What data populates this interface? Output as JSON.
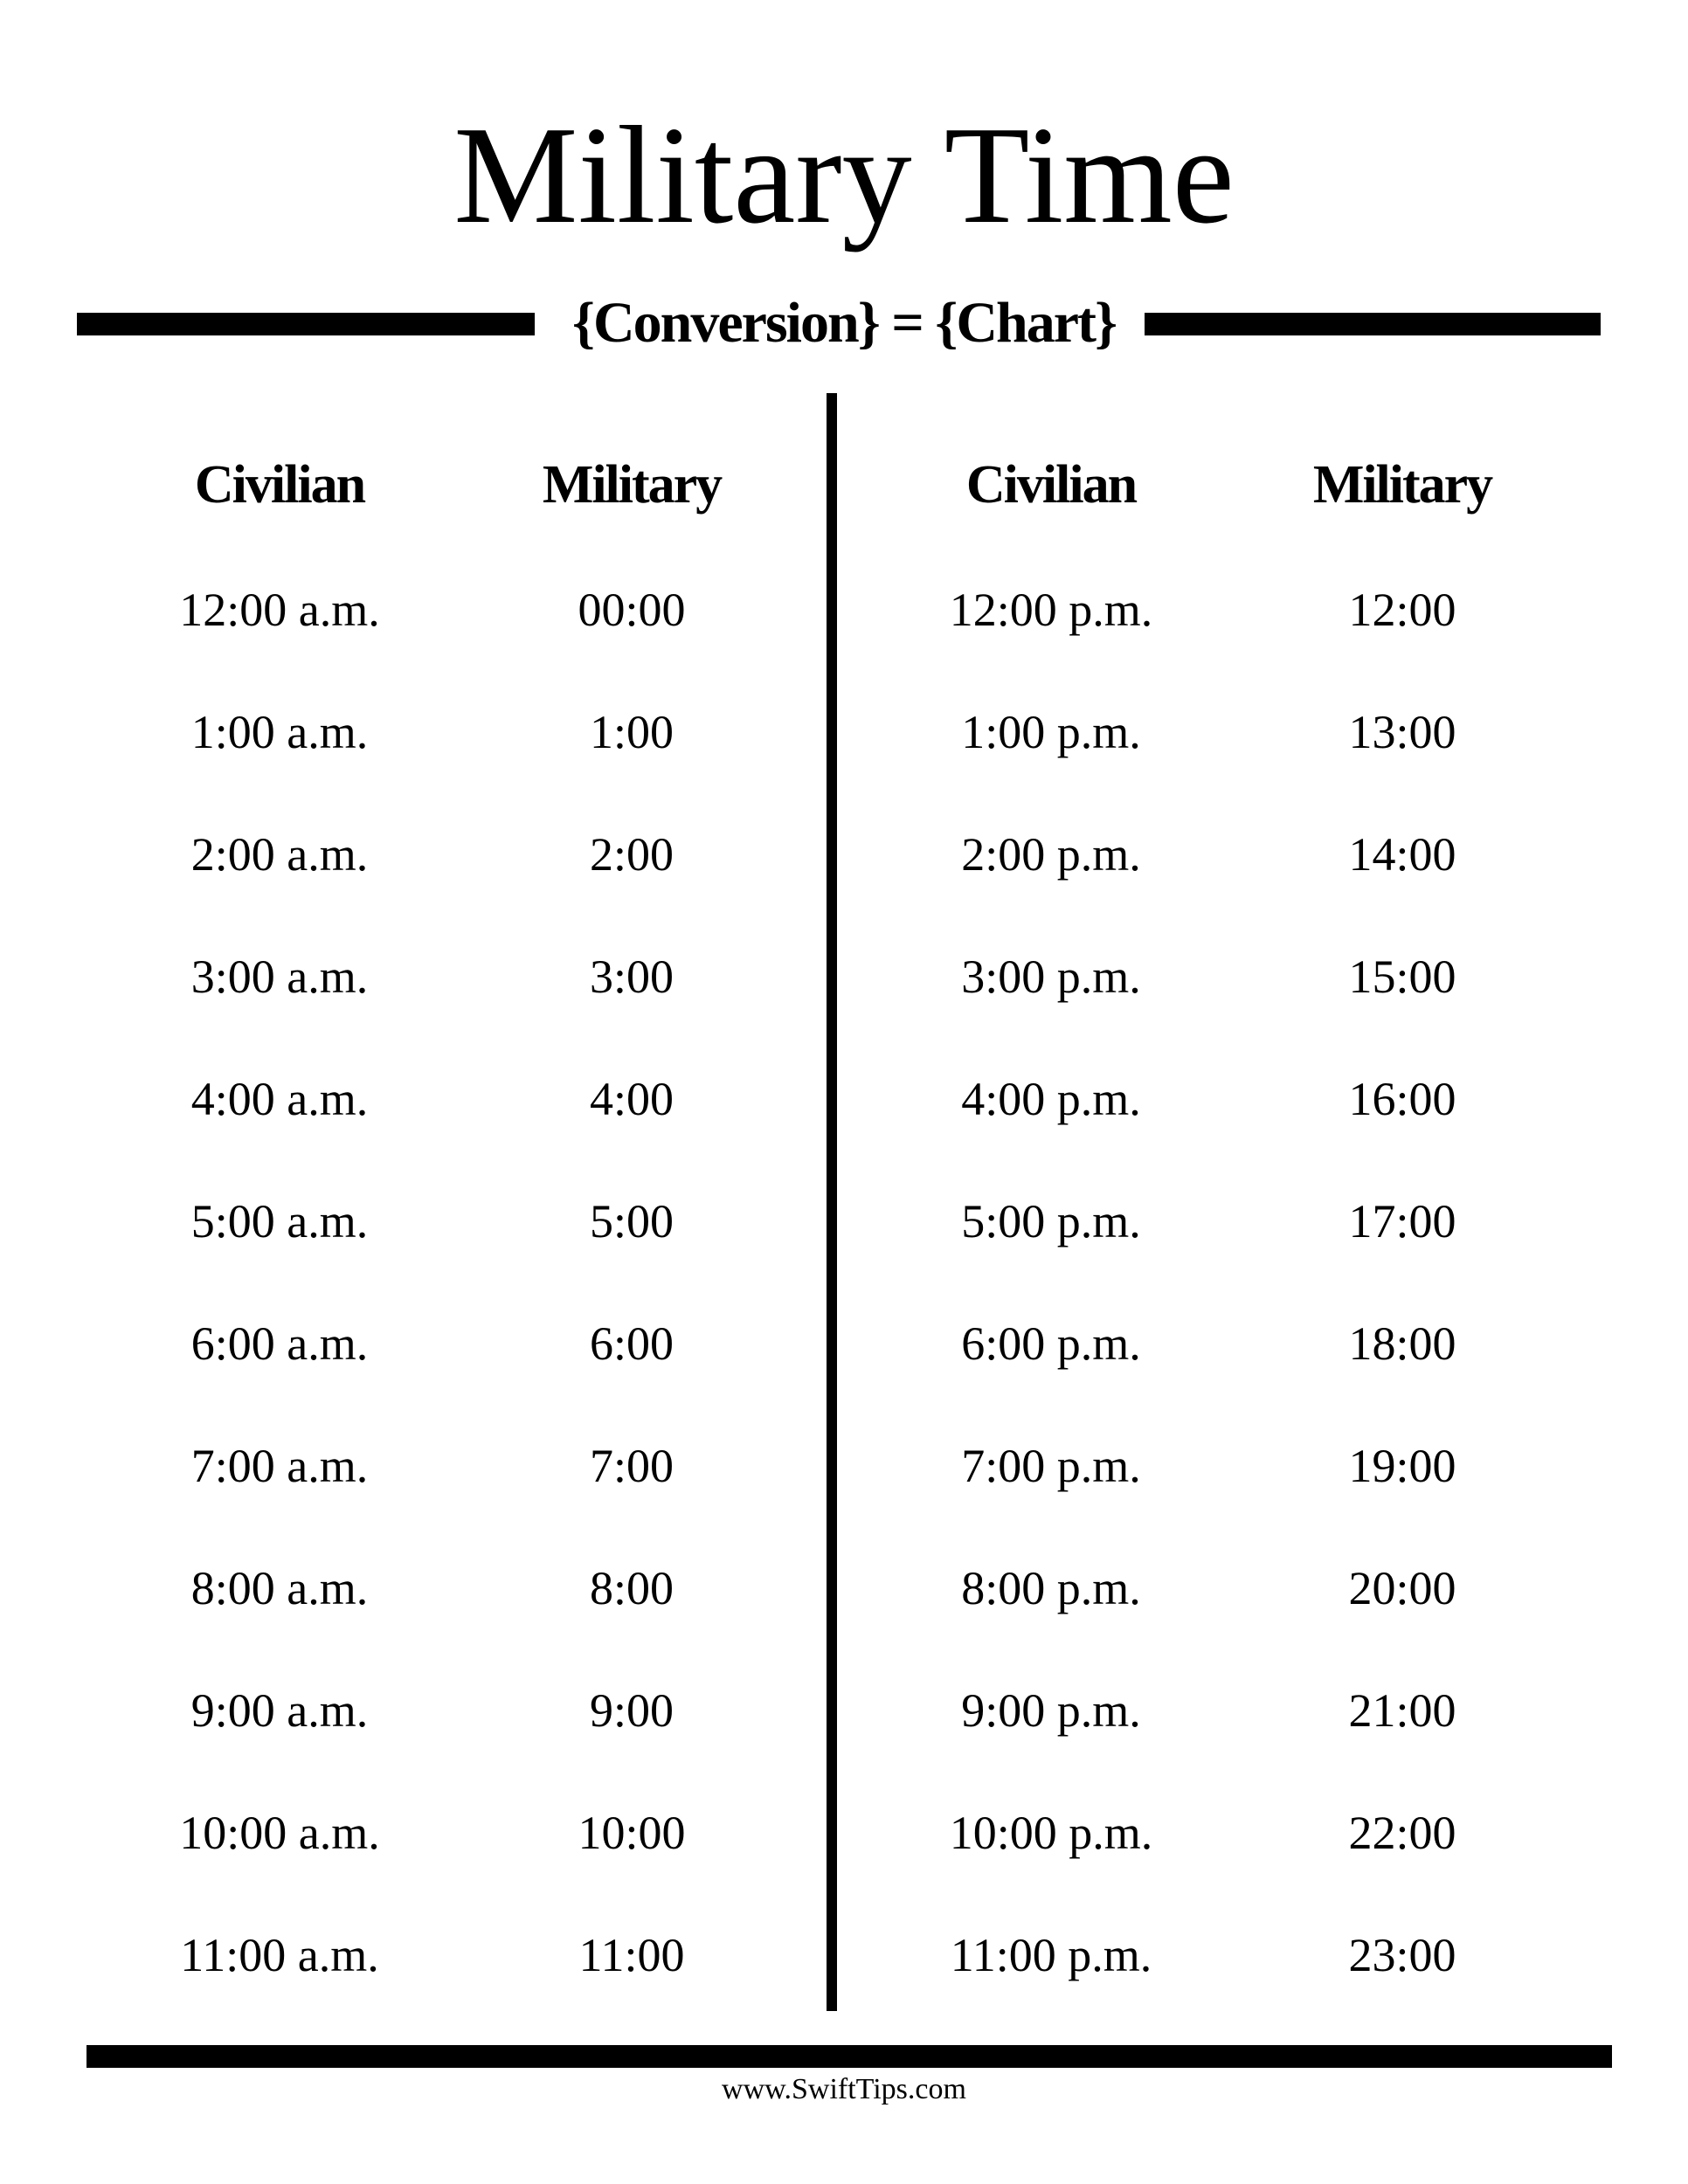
{
  "title": "Military Time",
  "subtitle": "{Conversion} = {Chart}",
  "headers": [
    "Civilian",
    "Military",
    "Civilian",
    "Military"
  ],
  "am_rows": [
    {
      "civilian": "12:00 a.m.",
      "military": "00:00"
    },
    {
      "civilian": "1:00 a.m.",
      "military": "1:00"
    },
    {
      "civilian": "2:00 a.m.",
      "military": "2:00"
    },
    {
      "civilian": "3:00 a.m.",
      "military": "3:00"
    },
    {
      "civilian": "4:00 a.m.",
      "military": "4:00"
    },
    {
      "civilian": "5:00 a.m.",
      "military": "5:00"
    },
    {
      "civilian": "6:00 a.m.",
      "military": "6:00"
    },
    {
      "civilian": "7:00 a.m.",
      "military": "7:00"
    },
    {
      "civilian": "8:00 a.m.",
      "military": "8:00"
    },
    {
      "civilian": "9:00 a.m.",
      "military": "9:00"
    },
    {
      "civilian": "10:00 a.m.",
      "military": "10:00"
    },
    {
      "civilian": "11:00 a.m.",
      "military": "11:00"
    }
  ],
  "pm_rows": [
    {
      "civilian": "12:00 p.m.",
      "military": "12:00"
    },
    {
      "civilian": "1:00 p.m.",
      "military": "13:00"
    },
    {
      "civilian": "2:00 p.m.",
      "military": "14:00"
    },
    {
      "civilian": "3:00 p.m.",
      "military": "15:00"
    },
    {
      "civilian": "4:00 p.m.",
      "military": "16:00"
    },
    {
      "civilian": "5:00 p.m.",
      "military": "17:00"
    },
    {
      "civilian": "6:00 p.m.",
      "military": "18:00"
    },
    {
      "civilian": "7:00 p.m.",
      "military": "19:00"
    },
    {
      "civilian": "8:00 p.m.",
      "military": "20:00"
    },
    {
      "civilian": "9:00 p.m.",
      "military": "21:00"
    },
    {
      "civilian": "10:00 p.m.",
      "military": "22:00"
    },
    {
      "civilian": "11:00 p.m.",
      "military": "23:00"
    }
  ],
  "footer": "www.SwiftTips.com"
}
